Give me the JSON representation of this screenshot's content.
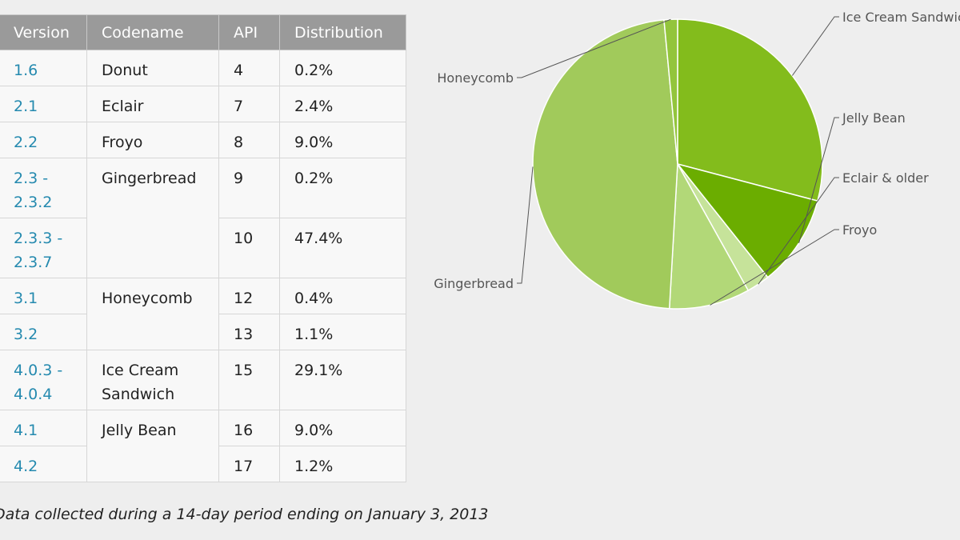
{
  "table": {
    "headers": [
      "Version",
      "Codename",
      "API",
      "Distribution"
    ],
    "rows": [
      {
        "version": "1.6",
        "codename": "Donut",
        "api": "4",
        "distribution": "0.2%"
      },
      {
        "version": "2.1",
        "codename": "Eclair",
        "api": "7",
        "distribution": "2.4%"
      },
      {
        "version": "2.2",
        "codename": "Froyo",
        "api": "8",
        "distribution": "9.0%"
      },
      {
        "version": "2.3 - 2.3.2",
        "codename": "Gingerbread",
        "api": "9",
        "distribution": "0.2%"
      },
      {
        "version": "2.3.3 - 2.3.7",
        "codename": "",
        "api": "10",
        "distribution": "47.4%"
      },
      {
        "version": "3.1",
        "codename": "Honeycomb",
        "api": "12",
        "distribution": "0.4%"
      },
      {
        "version": "3.2",
        "codename": "",
        "api": "13",
        "distribution": "1.1%"
      },
      {
        "version": "4.0.3 - 4.0.4",
        "codename": "Ice Cream Sandwich",
        "api": "15",
        "distribution": "29.1%"
      },
      {
        "version": "4.1",
        "codename": "Jelly Bean",
        "api": "16",
        "distribution": "9.0%"
      },
      {
        "version": "4.2",
        "codename": "",
        "api": "17",
        "distribution": "1.2%"
      }
    ]
  },
  "caption": "Data collected during a 14-day period ending on January 3, 2013",
  "chart_data": {
    "type": "pie",
    "categories": [
      "Ice Cream Sandwich",
      "Jelly Bean",
      "Eclair & older",
      "Froyo",
      "Gingerbread",
      "Honeycomb"
    ],
    "values": [
      29.1,
      10.2,
      2.6,
      9.0,
      47.6,
      1.5
    ],
    "colors": [
      "#83bc1c",
      "#6bad00",
      "#c6e39a",
      "#b2d878",
      "#a1ca5b",
      "#93c53c"
    ],
    "slice_order": "clockwise from top"
  }
}
